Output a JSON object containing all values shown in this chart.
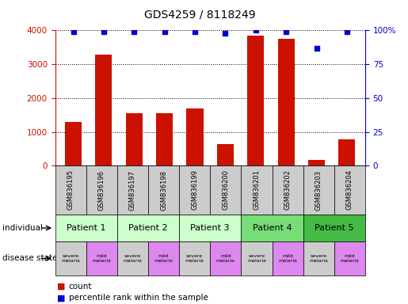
{
  "title": "GDS4259 / 8118249",
  "samples": [
    "GSM836195",
    "GSM836196",
    "GSM836197",
    "GSM836198",
    "GSM836199",
    "GSM836200",
    "GSM836201",
    "GSM836202",
    "GSM836203",
    "GSM836204"
  ],
  "counts": [
    1300,
    3280,
    1560,
    1560,
    1700,
    640,
    3850,
    3750,
    170,
    770
  ],
  "percentiles": [
    99,
    99,
    99,
    99,
    99,
    98,
    100,
    99,
    87,
    99
  ],
  "patients": [
    {
      "label": "Patient 1",
      "start": 0,
      "end": 2,
      "color": "#ccffcc"
    },
    {
      "label": "Patient 2",
      "start": 2,
      "end": 4,
      "color": "#ccffcc"
    },
    {
      "label": "Patient 3",
      "start": 4,
      "end": 6,
      "color": "#ccffcc"
    },
    {
      "label": "Patient 4",
      "start": 6,
      "end": 8,
      "color": "#77dd77"
    },
    {
      "label": "Patient 5",
      "start": 8,
      "end": 10,
      "color": "#44bb44"
    }
  ],
  "disease_states": [
    {
      "label": "severe\nmalaria",
      "color": "#cccccc"
    },
    {
      "label": "mild\nmalaria",
      "color": "#dd88ee"
    },
    {
      "label": "severe\nmalaria",
      "color": "#cccccc"
    },
    {
      "label": "mild\nmalaria",
      "color": "#dd88ee"
    },
    {
      "label": "severe\nmalaria",
      "color": "#cccccc"
    },
    {
      "label": "mild\nmalaria",
      "color": "#dd88ee"
    },
    {
      "label": "severe\nmalaria",
      "color": "#cccccc"
    },
    {
      "label": "mild\nmalaria",
      "color": "#dd88ee"
    },
    {
      "label": "severe\nmalaria",
      "color": "#cccccc"
    },
    {
      "label": "mild\nmalaria",
      "color": "#dd88ee"
    }
  ],
  "bar_color": "#cc1100",
  "dot_color": "#0000cc",
  "left_axis_color": "#cc1100",
  "right_axis_color": "#0000cc",
  "ylim_left": [
    0,
    4000
  ],
  "ylim_right": [
    0,
    100
  ],
  "yticks_left": [
    0,
    1000,
    2000,
    3000,
    4000
  ],
  "yticks_right": [
    0,
    25,
    50,
    75,
    100
  ],
  "background_color": "#ffffff",
  "sample_bg_color": "#cccccc",
  "title_fontsize": 10
}
